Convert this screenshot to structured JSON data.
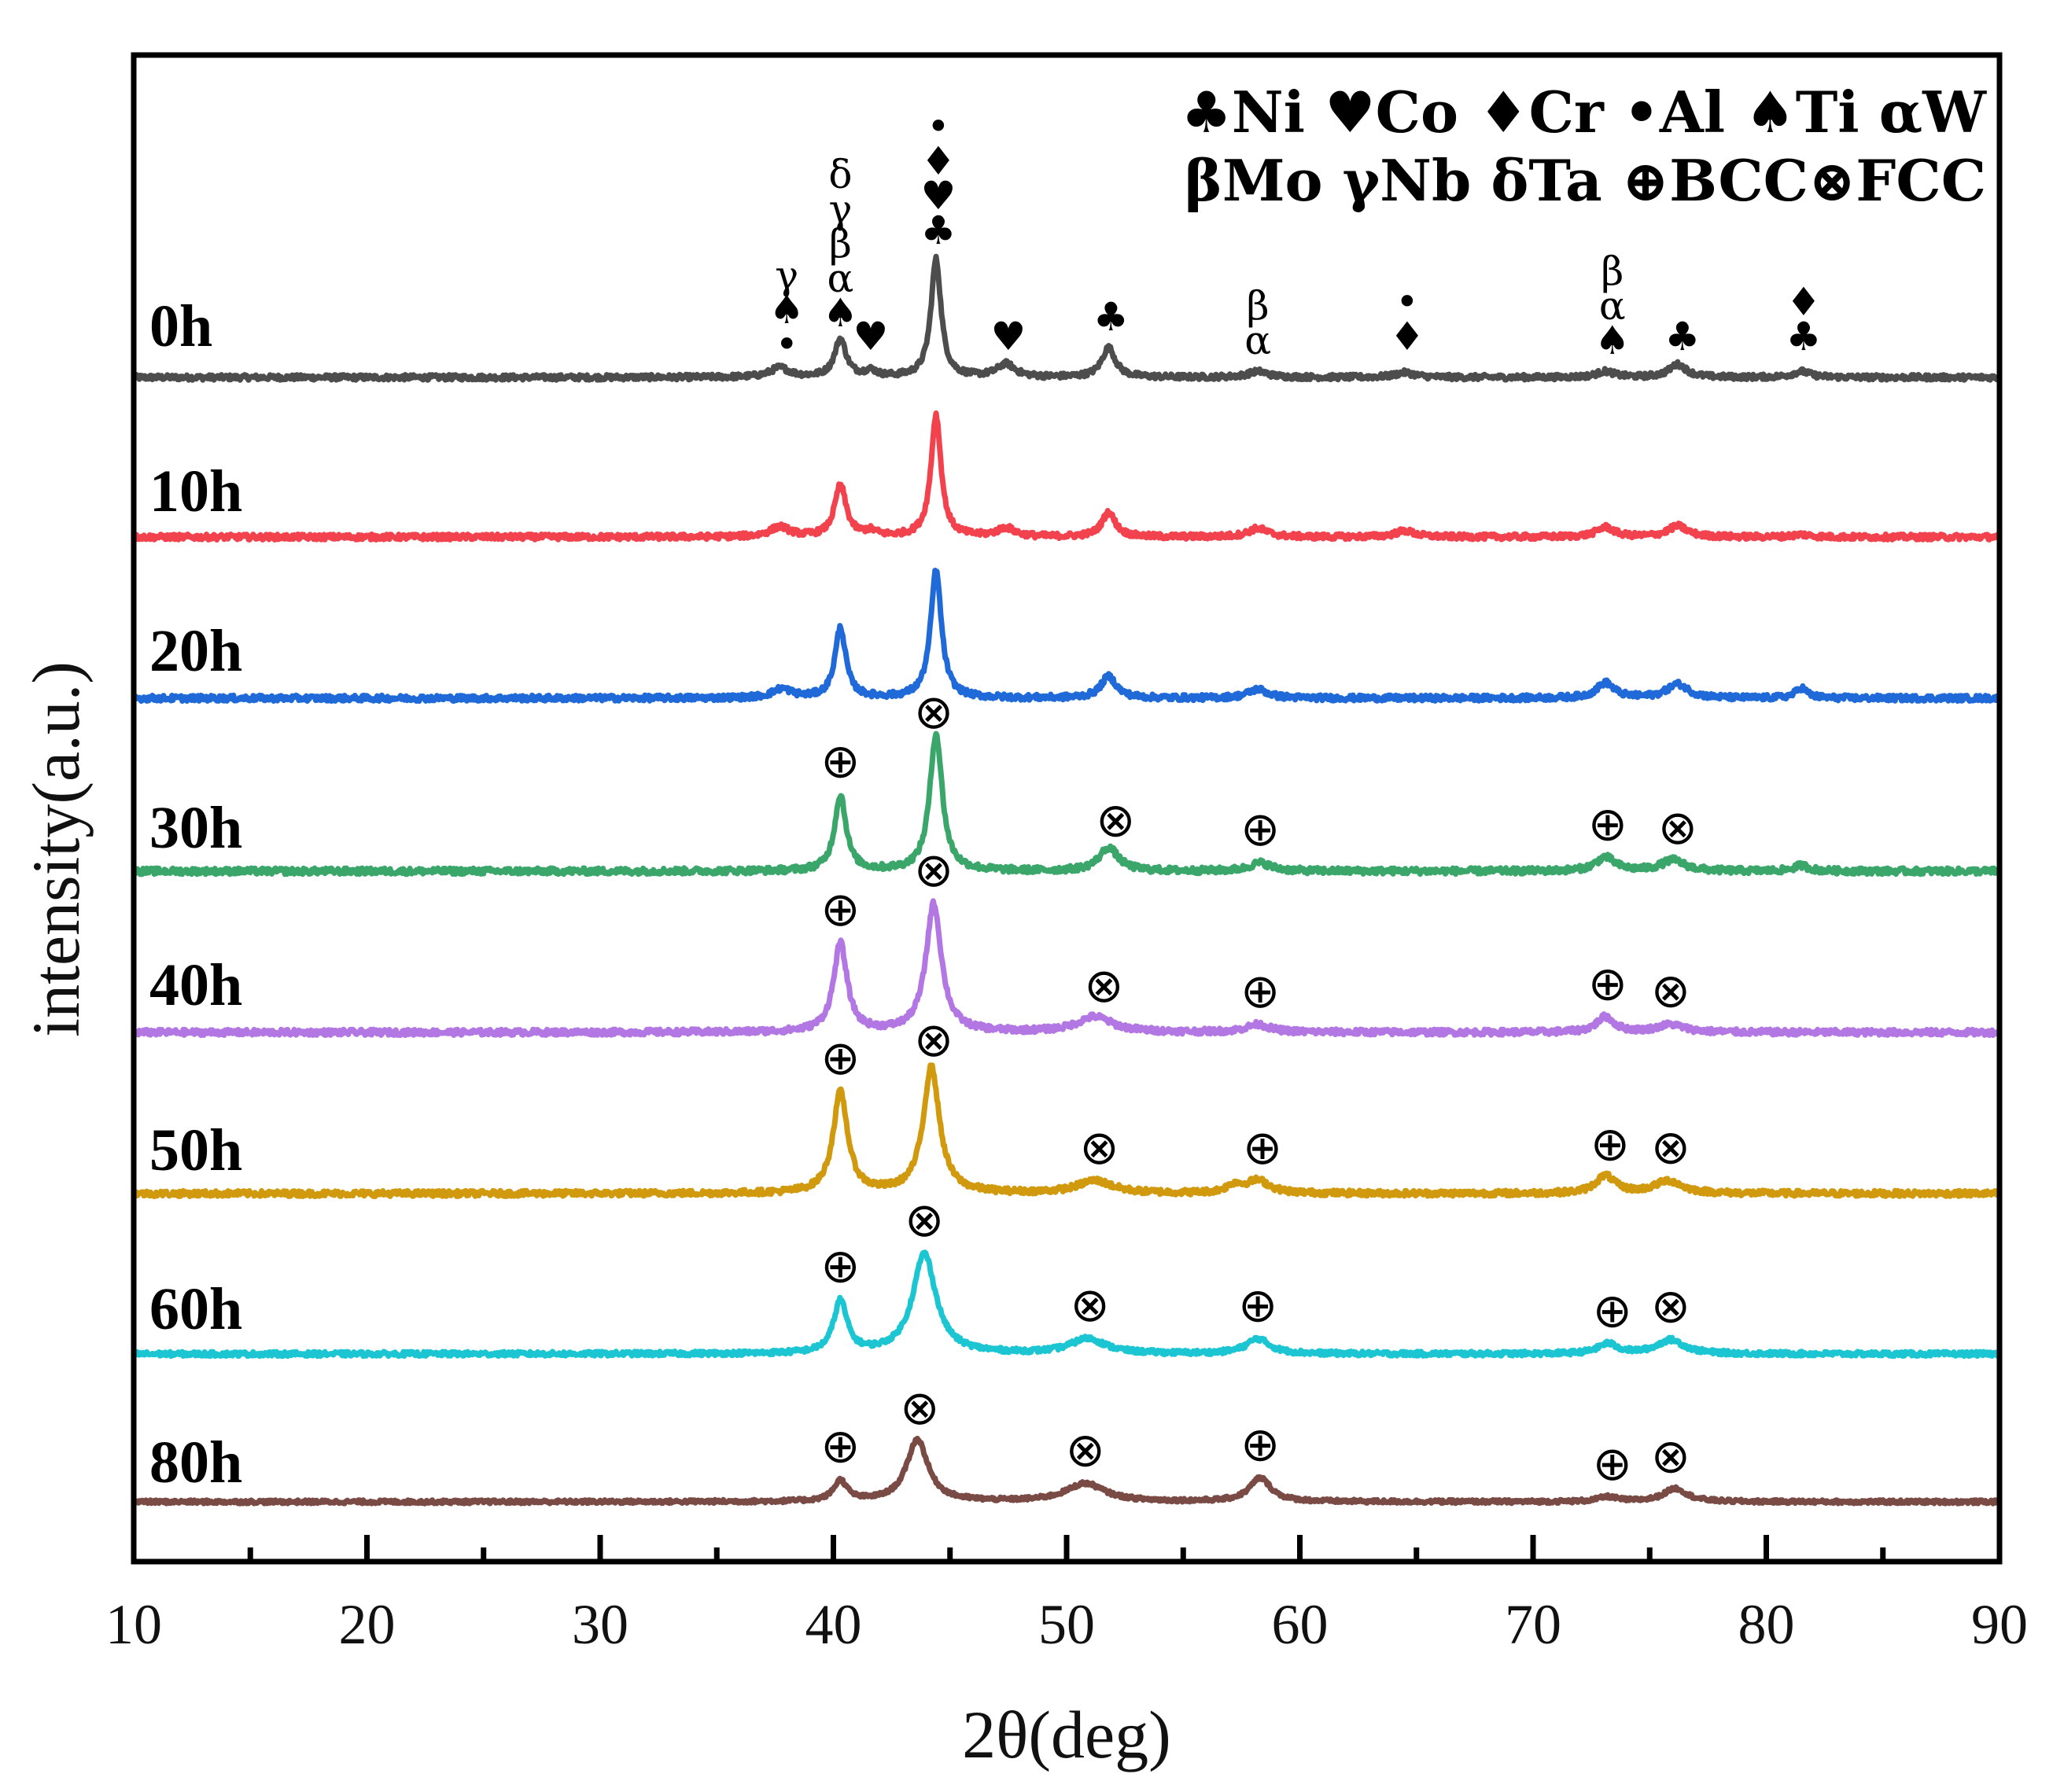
{
  "chart_data": {
    "type": "line",
    "title": "",
    "xlabel": "2θ(deg)",
    "ylabel": "intensity(a.u.)",
    "xlim": [
      10,
      90
    ],
    "xticks": [
      10,
      20,
      30,
      40,
      50,
      60,
      70,
      80,
      90
    ],
    "legend": {
      "placement": "top-right",
      "line1": "♣Ni ♥Co ♦Cr •Al ♠Ti αW",
      "line2": "βMo γNb δTa ⊕BCC⊗FCC"
    },
    "series": [
      {
        "name": "0h",
        "color": "#4d4d4d",
        "peaks": [
          [
            37.7,
            0.08,
            0.5
          ],
          [
            40.3,
            0.32,
            0.3
          ],
          [
            41.6,
            0.05,
            0.3
          ],
          [
            44.4,
            1.0,
            0.26
          ],
          [
            47.4,
            0.11,
            0.45
          ],
          [
            51.8,
            0.25,
            0.35
          ],
          [
            58.2,
            0.05,
            0.5
          ],
          [
            64.5,
            0.04,
            0.5
          ],
          [
            73.1,
            0.05,
            0.45
          ],
          [
            76.2,
            0.11,
            0.45
          ],
          [
            81.5,
            0.05,
            0.45
          ]
        ]
      },
      {
        "name": "10h",
        "color": "#f2424e",
        "peaks": [
          [
            37.7,
            0.08,
            0.5
          ],
          [
            40.3,
            0.42,
            0.3
          ],
          [
            41.6,
            0.04,
            0.3
          ],
          [
            44.4,
            1.0,
            0.26
          ],
          [
            47.4,
            0.07,
            0.45
          ],
          [
            51.8,
            0.2,
            0.35
          ],
          [
            58.2,
            0.07,
            0.5
          ],
          [
            64.5,
            0.05,
            0.5
          ],
          [
            73.1,
            0.08,
            0.45
          ],
          [
            76.2,
            0.09,
            0.5
          ],
          [
            81.5,
            0.02,
            0.45
          ]
        ]
      },
      {
        "name": "20h",
        "color": "#1f6ad8",
        "peaks": [
          [
            37.8,
            0.07,
            0.5
          ],
          [
            40.3,
            0.55,
            0.28
          ],
          [
            44.4,
            1.0,
            0.28
          ],
          [
            51.8,
            0.17,
            0.4
          ],
          [
            58.2,
            0.07,
            0.5
          ],
          [
            73.1,
            0.12,
            0.45
          ],
          [
            76.2,
            0.11,
            0.55
          ],
          [
            81.5,
            0.08,
            0.3
          ]
        ]
      },
      {
        "name": "30h",
        "color": "#3aa66a",
        "peaks": [
          [
            40.3,
            0.55,
            0.3
          ],
          [
            44.4,
            1.0,
            0.32
          ],
          [
            51.8,
            0.17,
            0.5
          ],
          [
            58.3,
            0.06,
            0.55
          ],
          [
            73.1,
            0.1,
            0.5
          ],
          [
            76.0,
            0.08,
            0.6
          ],
          [
            81.5,
            0.04,
            0.4
          ]
        ]
      },
      {
        "name": "40h",
        "color": "#b277e2",
        "peaks": [
          [
            40.3,
            0.69,
            0.35
          ],
          [
            44.3,
            1.0,
            0.4
          ],
          [
            51.2,
            0.12,
            0.9
          ],
          [
            58.2,
            0.06,
            0.6
          ],
          [
            73.1,
            0.12,
            0.45
          ],
          [
            75.9,
            0.06,
            0.7
          ]
        ]
      },
      {
        "name": "50h",
        "color": "#d19a0e",
        "peaks": [
          [
            40.3,
            0.8,
            0.38
          ],
          [
            44.2,
            1.0,
            0.42
          ],
          [
            51.2,
            0.1,
            0.9
          ],
          [
            57.2,
            0.06,
            0.4
          ],
          [
            58.2,
            0.1,
            0.6
          ],
          [
            73.1,
            0.14,
            0.5
          ],
          [
            75.8,
            0.1,
            0.7
          ]
        ]
      },
      {
        "name": "60h",
        "color": "#1bc6d2",
        "peaks": [
          [
            40.3,
            0.52,
            0.35
          ],
          [
            43.9,
            1.0,
            0.6
          ],
          [
            50.9,
            0.15,
            0.9
          ],
          [
            58.2,
            0.15,
            0.6
          ],
          [
            73.2,
            0.1,
            0.5
          ],
          [
            75.9,
            0.14,
            0.7
          ]
        ]
      },
      {
        "name": "80h",
        "color": "#7a4a44",
        "peaks": [
          [
            40.3,
            0.26,
            0.35
          ],
          [
            43.6,
            0.79,
            0.55
          ],
          [
            50.8,
            0.23,
            1.0
          ],
          [
            58.3,
            0.3,
            0.55
          ],
          [
            73.2,
            0.06,
            0.5
          ],
          [
            76.1,
            0.17,
            0.6
          ]
        ]
      }
    ],
    "annotations_0h": [
      {
        "x": 38.0,
        "lines": [
          "γ",
          "♠",
          "•"
        ]
      },
      {
        "x": 40.3,
        "lines": [
          "δ",
          "γ",
          "β",
          "α",
          "♠"
        ]
      },
      {
        "x": 41.6,
        "lines": [
          "♥"
        ]
      },
      {
        "x": 44.5,
        "lines": [
          "•",
          "♦",
          "♥",
          "♣"
        ]
      },
      {
        "x": 47.5,
        "lines": [
          "♥"
        ]
      },
      {
        "x": 51.9,
        "lines": [
          "♣"
        ]
      },
      {
        "x": 58.2,
        "lines": [
          "β",
          "α"
        ]
      },
      {
        "x": 64.6,
        "lines": [
          "•",
          "♦"
        ]
      },
      {
        "x": 73.4,
        "lines": [
          "β",
          "α",
          "♠"
        ]
      },
      {
        "x": 76.4,
        "lines": [
          "♣"
        ]
      },
      {
        "x": 81.6,
        "lines": [
          "♦",
          "♣"
        ]
      }
    ],
    "phase_markers": [
      {
        "series": "30h",
        "items": [
          [
            "⊕",
            40.3
          ],
          [
            "⊗",
            44.3
          ],
          [
            "⊗",
            52.1
          ],
          [
            "⊕",
            58.3
          ],
          [
            "⊕",
            73.2
          ],
          [
            "⊗",
            76.2
          ]
        ]
      },
      {
        "series": "40h",
        "items": [
          [
            "⊕",
            40.3
          ],
          [
            "⊗",
            44.3
          ],
          [
            "⊗",
            51.6
          ],
          [
            "⊕",
            58.3
          ],
          [
            "⊕",
            73.2
          ],
          [
            "⊗",
            75.9
          ]
        ]
      },
      {
        "series": "50h",
        "items": [
          [
            "⊕",
            40.3
          ],
          [
            "⊗",
            44.3
          ],
          [
            "⊗",
            51.4
          ],
          [
            "⊕",
            58.4
          ],
          [
            "⊕",
            73.3
          ],
          [
            "⊗",
            75.9
          ]
        ]
      },
      {
        "series": "60h",
        "items": [
          [
            "⊕",
            40.3
          ],
          [
            "⊗",
            43.9
          ],
          [
            "⊗",
            51.0
          ],
          [
            "⊕",
            58.2
          ],
          [
            "⊕",
            73.4
          ],
          [
            "⊗",
            75.9
          ]
        ]
      },
      {
        "series": "80h",
        "items": [
          [
            "⊕",
            40.3
          ],
          [
            "⊗",
            43.7
          ],
          [
            "⊗",
            50.8
          ],
          [
            "⊕",
            58.3
          ],
          [
            "⊕",
            73.4
          ],
          [
            "⊗",
            75.9
          ]
        ]
      }
    ]
  }
}
